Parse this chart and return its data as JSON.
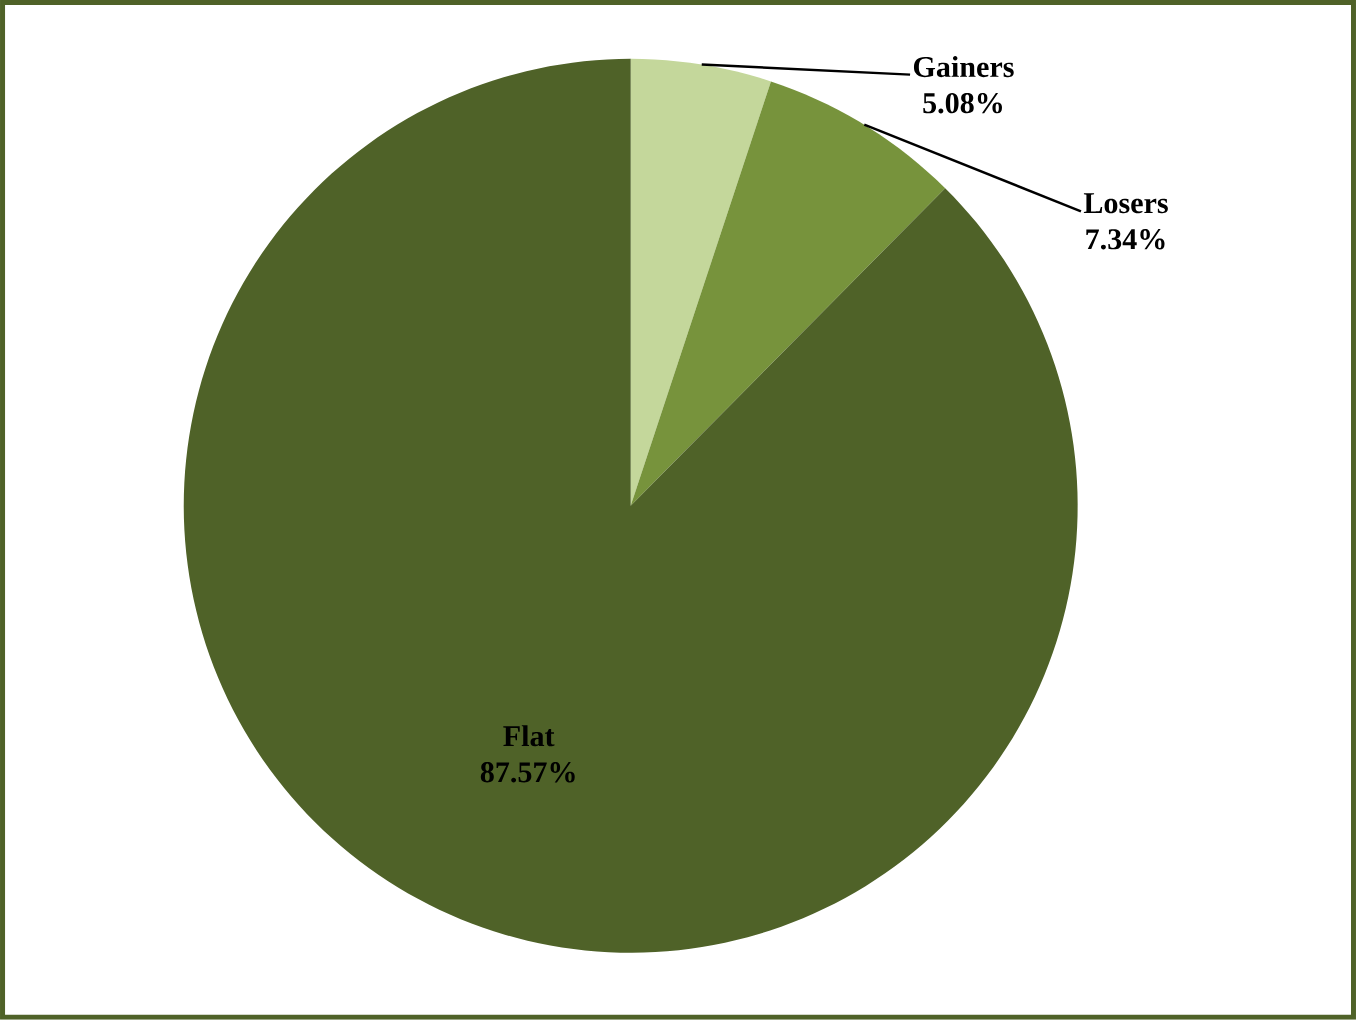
{
  "chart_data": {
    "type": "pie",
    "categories": [
      "Gainers",
      "Losers",
      "Flat"
    ],
    "values": [
      5.08,
      7.34,
      87.57
    ],
    "colors": [
      "#c4d79b",
      "#77933c",
      "#4f6228"
    ],
    "value_labels": [
      "5.08%",
      "7.34%",
      "87.57%"
    ]
  }
}
